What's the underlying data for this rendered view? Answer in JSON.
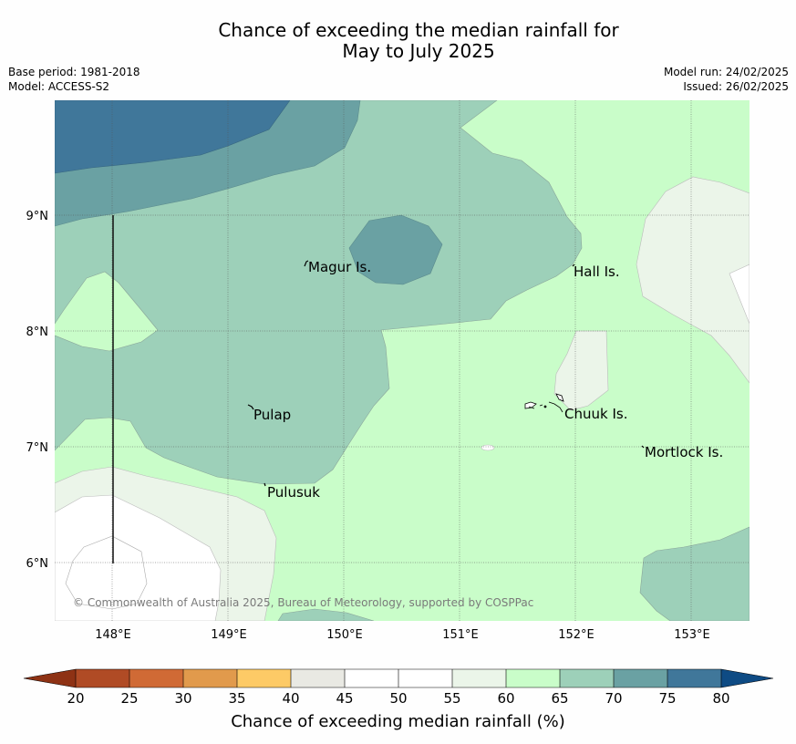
{
  "header": {
    "title_line1": "Chance of exceeding the median rainfall for",
    "title_line2": "May to July 2025",
    "base_period": "Base period: 1981-2018",
    "model": "Model: ACCESS-S2",
    "model_run": "Model run: 24/02/2025",
    "issued": "Issued: 26/02/2025"
  },
  "map": {
    "copyright": "© Commonwealth of Australia 2025, Bureau of Meteorology, supported by COSPPac",
    "lon_labels": [
      "148°E",
      "149°E",
      "150°E",
      "151°E",
      "152°E",
      "153°E"
    ],
    "lat_labels": [
      "9°N",
      "8°N",
      "7°N",
      "6°N"
    ],
    "places": [
      {
        "name": "Magur Is."
      },
      {
        "name": "Hall Is."
      },
      {
        "name": "Pulap"
      },
      {
        "name": "Chuuk Is."
      },
      {
        "name": "Mortlock Is."
      },
      {
        "name": "Pulusuk"
      }
    ]
  },
  "colorbar": {
    "label": "Chance of exceeding median rainfall (%)",
    "ticks": [
      "20",
      "25",
      "30",
      "35",
      "40",
      "45",
      "50",
      "55",
      "60",
      "65",
      "70",
      "75",
      "80"
    ],
    "colors": {
      "below_20": "#8e3214",
      "20_25": "#b04b25",
      "25_30": "#d06a35",
      "30_35": "#e19a4c",
      "35_40": "#fdca66",
      "40_45": "#e9e9e3",
      "45_50": "#ffffff",
      "50_55": "#ffffff",
      "55_60": "#ebf5e9",
      "60_65": "#c9fdc9",
      "65_70": "#9dd0b9",
      "70_75": "#6aa1a3",
      "75_80": "#40779a",
      "above_80": "#0e4b84"
    }
  }
}
